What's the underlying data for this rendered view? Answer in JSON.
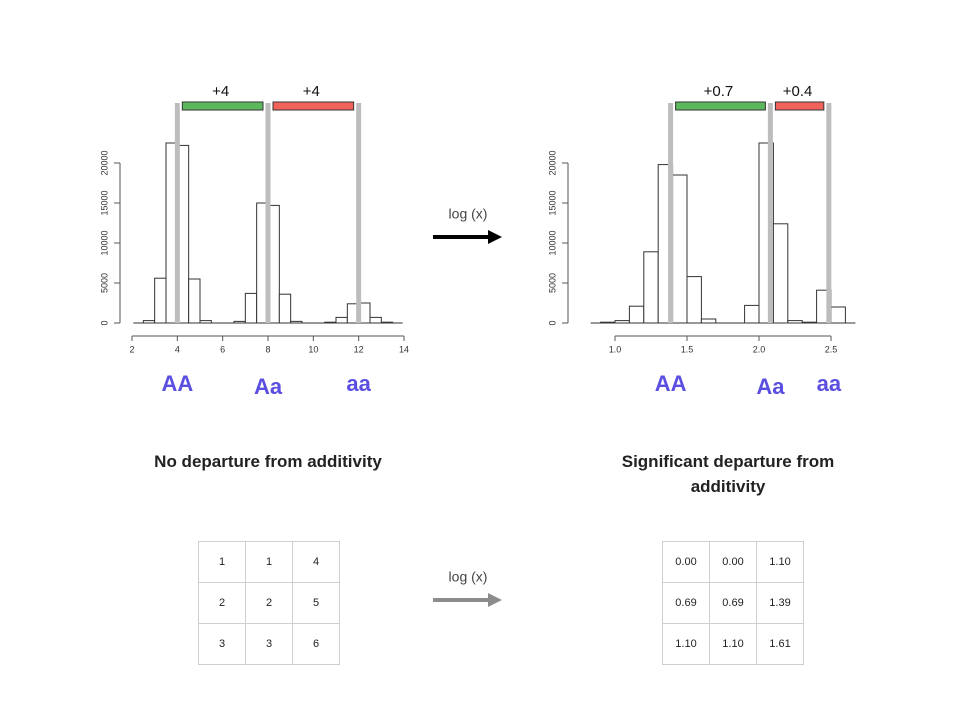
{
  "chart_data": [
    {
      "type": "histogram",
      "bins": [
        2.5,
        3,
        3.5,
        4,
        4.5,
        5,
        5.5,
        6,
        6.5,
        7,
        7.5,
        8,
        8.5,
        9,
        9.5,
        10,
        10.5,
        11,
        11.5,
        12,
        12.5,
        13,
        13.5
      ],
      "counts": [
        300,
        5600,
        22500,
        22200,
        5500,
        300,
        0,
        0,
        200,
        3700,
        15000,
        14700,
        3600,
        200,
        0,
        0,
        100,
        700,
        2400,
        2500,
        700,
        100
      ],
      "xlim": [
        2,
        14
      ],
      "xticks": [
        2,
        4,
        6,
        8,
        10,
        12,
        14
      ],
      "ylim": [
        0,
        20000
      ],
      "yticks": [
        0,
        5000,
        10000,
        15000,
        20000
      ],
      "reference_lines": [
        4,
        8,
        12
      ],
      "reference_color": "#bdbdbd",
      "increments": [
        {
          "label": "+4",
          "color": "#5cb85c"
        },
        {
          "label": "+4",
          "color": "#f0625a"
        }
      ],
      "group_labels": [
        "AA",
        "Aa",
        "aa"
      ],
      "group_label_color": "#5a4fe0",
      "caption": "No departure from additivity"
    },
    {
      "type": "histogram",
      "bins": [
        0.9,
        1.0,
        1.1,
        1.2,
        1.3,
        1.4,
        1.5,
        1.6,
        1.7,
        1.8,
        1.9,
        2.0,
        2.1,
        2.2,
        2.3,
        2.4,
        2.5,
        2.6
      ],
      "counts": [
        100,
        300,
        2100,
        8900,
        19800,
        18500,
        5800,
        500,
        0,
        0,
        2200,
        22500,
        12400,
        300,
        100,
        4100,
        2000
      ],
      "xlim": [
        1,
        2.5
      ],
      "xticks": [
        {
          "value": 1,
          "label": "1.0"
        },
        1.5,
        {
          "value": 2,
          "label": "2.0"
        },
        2.5
      ],
      "ylim": [
        0,
        20000
      ],
      "yticks": [
        0,
        5000,
        10000,
        15000,
        20000
      ],
      "reference_lines": [
        1.386,
        2.079,
        2.485
      ],
      "reference_color": "#bdbdbd",
      "increments": [
        {
          "label": "+0.7",
          "color": "#5cb85c"
        },
        {
          "label": "+0.4",
          "color": "#f0625a"
        }
      ],
      "group_labels": [
        "AA",
        "Aa",
        "aa"
      ],
      "group_label_color": "#5a4fe0",
      "caption": "Significant departure from additivity"
    }
  ],
  "arrows": [
    {
      "label": "log (x)",
      "color": "#000000"
    },
    {
      "label": "log (x)",
      "color": "#8c8c8c"
    }
  ],
  "tables": [
    {
      "rows": [
        [
          "1",
          "1",
          "4"
        ],
        [
          "2",
          "2",
          "5"
        ],
        [
          "3",
          "3",
          "6"
        ]
      ]
    },
    {
      "rows": [
        [
          "0.00",
          "0.00",
          "1.10"
        ],
        [
          "0.69",
          "0.69",
          "1.39"
        ],
        [
          "1.10",
          "1.10",
          "1.61"
        ]
      ]
    }
  ]
}
